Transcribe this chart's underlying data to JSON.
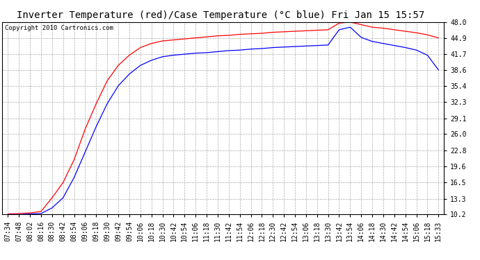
{
  "title": "Inverter Temperature (red)/Case Temperature (°C blue) Fri Jan 15 15:57",
  "copyright": "Copyright 2010 Cartronics.com",
  "yticks": [
    10.2,
    13.3,
    16.5,
    19.6,
    22.8,
    26.0,
    29.1,
    32.3,
    35.4,
    38.6,
    41.7,
    44.9,
    48.0
  ],
  "ymin": 10.2,
  "ymax": 48.0,
  "xtick_labels": [
    "07:34",
    "07:48",
    "08:02",
    "08:16",
    "08:30",
    "08:42",
    "08:54",
    "09:06",
    "09:18",
    "09:30",
    "09:42",
    "09:54",
    "10:06",
    "10:18",
    "10:30",
    "10:42",
    "10:54",
    "11:06",
    "11:18",
    "11:30",
    "11:42",
    "11:54",
    "12:06",
    "12:18",
    "12:30",
    "12:42",
    "12:54",
    "13:06",
    "13:18",
    "13:30",
    "13:42",
    "13:54",
    "14:06",
    "14:18",
    "14:30",
    "14:42",
    "14:54",
    "15:06",
    "15:18",
    "15:33"
  ],
  "red_line": [
    10.3,
    10.4,
    10.5,
    10.8,
    13.5,
    16.5,
    21.0,
    27.0,
    32.0,
    36.5,
    39.5,
    41.5,
    43.0,
    43.8,
    44.3,
    44.5,
    44.7,
    44.9,
    45.1,
    45.3,
    45.4,
    45.6,
    45.7,
    45.8,
    46.0,
    46.1,
    46.2,
    46.3,
    46.4,
    46.5,
    47.8,
    48.0,
    47.5,
    47.0,
    46.8,
    46.5,
    46.2,
    45.9,
    45.5,
    44.9
  ],
  "blue_line": [
    10.2,
    10.2,
    10.3,
    10.4,
    11.5,
    13.5,
    17.5,
    22.5,
    27.5,
    32.0,
    35.5,
    37.8,
    39.5,
    40.5,
    41.2,
    41.5,
    41.7,
    41.9,
    42.0,
    42.2,
    42.4,
    42.5,
    42.7,
    42.8,
    43.0,
    43.1,
    43.2,
    43.3,
    43.4,
    43.5,
    46.5,
    47.0,
    45.0,
    44.2,
    43.8,
    43.4,
    43.0,
    42.5,
    41.5,
    38.6
  ],
  "bg_color": "#ffffff",
  "plot_bg_color": "#ffffff",
  "grid_color": "#aaaaaa",
  "title_fontsize": 10,
  "tick_fontsize": 7,
  "copyright_fontsize": 6.5
}
